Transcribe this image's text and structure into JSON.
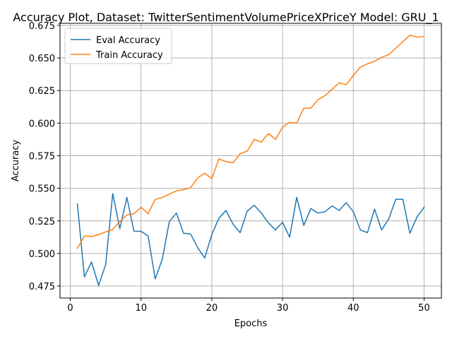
{
  "chart_data": {
    "type": "line",
    "title": "Accuracy Plot, Dataset: TwitterSentimentVolumePriceXPriceY Model: GRU_1",
    "xlabel": "Epochs",
    "ylabel": "Accuracy",
    "xlim": [
      -1.45,
      52.45
    ],
    "ylim": [
      0.4658,
      0.6766
    ],
    "grid": true,
    "legend_position": "top-left",
    "x_ticks": [
      0,
      10,
      20,
      30,
      40,
      50
    ],
    "y_ticks": [
      0.475,
      0.5,
      0.525,
      0.55,
      0.575,
      0.6,
      0.625,
      0.65,
      0.675
    ],
    "x_tick_labels": [
      "0",
      "10",
      "20",
      "30",
      "40",
      "50"
    ],
    "y_tick_labels": [
      "0.475",
      "0.500",
      "0.525",
      "0.550",
      "0.575",
      "0.600",
      "0.625",
      "0.650",
      "0.675"
    ],
    "x": [
      1,
      2,
      3,
      4,
      5,
      6,
      7,
      8,
      9,
      10,
      11,
      12,
      13,
      14,
      15,
      16,
      17,
      18,
      19,
      20,
      21,
      22,
      23,
      24,
      25,
      26,
      27,
      28,
      29,
      30,
      31,
      32,
      33,
      34,
      35,
      36,
      37,
      38,
      39,
      40,
      41,
      42,
      43,
      44,
      45,
      46,
      47,
      48,
      49,
      50
    ],
    "series": [
      {
        "name": "Eval Accuracy",
        "color": "#1f77b4",
        "values": [
          0.538,
          0.482,
          0.4935,
          0.4755,
          0.4915,
          0.546,
          0.519,
          0.543,
          0.517,
          0.517,
          0.5135,
          0.4805,
          0.4955,
          0.5245,
          0.531,
          0.5155,
          0.515,
          0.5045,
          0.4965,
          0.5145,
          0.527,
          0.533,
          0.5225,
          0.516,
          0.5325,
          0.537,
          0.531,
          0.5235,
          0.518,
          0.524,
          0.5125,
          0.543,
          0.5215,
          0.5345,
          0.531,
          0.532,
          0.5365,
          0.533,
          0.539,
          0.532,
          0.518,
          0.516,
          0.534,
          0.518,
          0.5265,
          0.5415,
          0.5415,
          0.5155,
          0.528,
          0.5355
        ]
      },
      {
        "name": "Train Accuracy",
        "color": "#ff7f0e",
        "values": [
          0.504,
          0.5135,
          0.513,
          0.5145,
          0.5165,
          0.5185,
          0.5245,
          0.5295,
          0.5305,
          0.5355,
          0.5305,
          0.5415,
          0.543,
          0.5455,
          0.548,
          0.549,
          0.5505,
          0.558,
          0.5615,
          0.5575,
          0.5725,
          0.5705,
          0.5695,
          0.5765,
          0.5785,
          0.5875,
          0.5855,
          0.592,
          0.5875,
          0.597,
          0.6005,
          0.6,
          0.6115,
          0.6115,
          0.618,
          0.621,
          0.626,
          0.631,
          0.6295,
          0.6365,
          0.643,
          0.6455,
          0.6475,
          0.6505,
          0.6525,
          0.6575,
          0.6625,
          0.6675,
          0.666,
          0.6665
        ]
      }
    ]
  }
}
